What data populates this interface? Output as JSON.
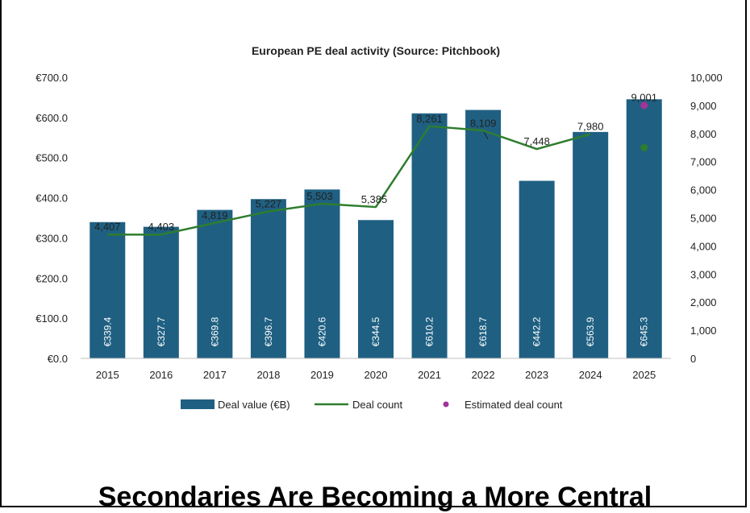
{
  "chart_data": {
    "type": "bar",
    "title": "European PE deal activity (Source: Pitchbook)",
    "categories": [
      "2015",
      "2016",
      "2017",
      "2018",
      "2019",
      "2020",
      "2021",
      "2022",
      "2023",
      "2024",
      "2025"
    ],
    "series": [
      {
        "name": "Deal value (€B)",
        "type": "bar",
        "axis": "left",
        "values": [
          339.4,
          327.7,
          369.8,
          396.7,
          420.6,
          344.5,
          610.2,
          618.7,
          442.2,
          563.9,
          645.3
        ],
        "labels": [
          "€339.4",
          "€327.7",
          "€369.8",
          "€396.7",
          "€420.6",
          "€344.5",
          "€610.2",
          "€618.7",
          "€442.2",
          "€563.9",
          "€645.3"
        ]
      },
      {
        "name": "Deal count",
        "type": "line",
        "axis": "right",
        "values": [
          4407,
          4403,
          4819,
          5227,
          5503,
          5385,
          8261,
          8109,
          7448,
          7980,
          7500
        ],
        "labels": [
          "4,407",
          "4,403",
          "4,819",
          "5,227",
          "5,503",
          "5,385",
          "8,261",
          "8,109",
          "7,448",
          "7,980",
          ""
        ]
      },
      {
        "name": "Estimated deal count",
        "type": "scatter",
        "axis": "right",
        "points": [
          {
            "x": "2025",
            "y": 9001,
            "label": "9,001"
          }
        ]
      }
    ],
    "y_left": {
      "ticks": [
        "€0.0",
        "€100.0",
        "€200.0",
        "€300.0",
        "€400.0",
        "€500.0",
        "€600.0",
        "€700.0"
      ],
      "range": [
        0,
        700
      ]
    },
    "y_right": {
      "ticks": [
        "0",
        "1,000",
        "2,000",
        "3,000",
        "4,000",
        "5,000",
        "6,000",
        "7,000",
        "8,000",
        "9,000",
        "10,000"
      ],
      "range": [
        0,
        10000
      ]
    },
    "legend_position": "bottom",
    "colors": {
      "bar": "#1f6082",
      "line": "#2e7d2e",
      "estimate": "#a23399"
    }
  },
  "headline": "Secondaries Are Becoming a More Central"
}
